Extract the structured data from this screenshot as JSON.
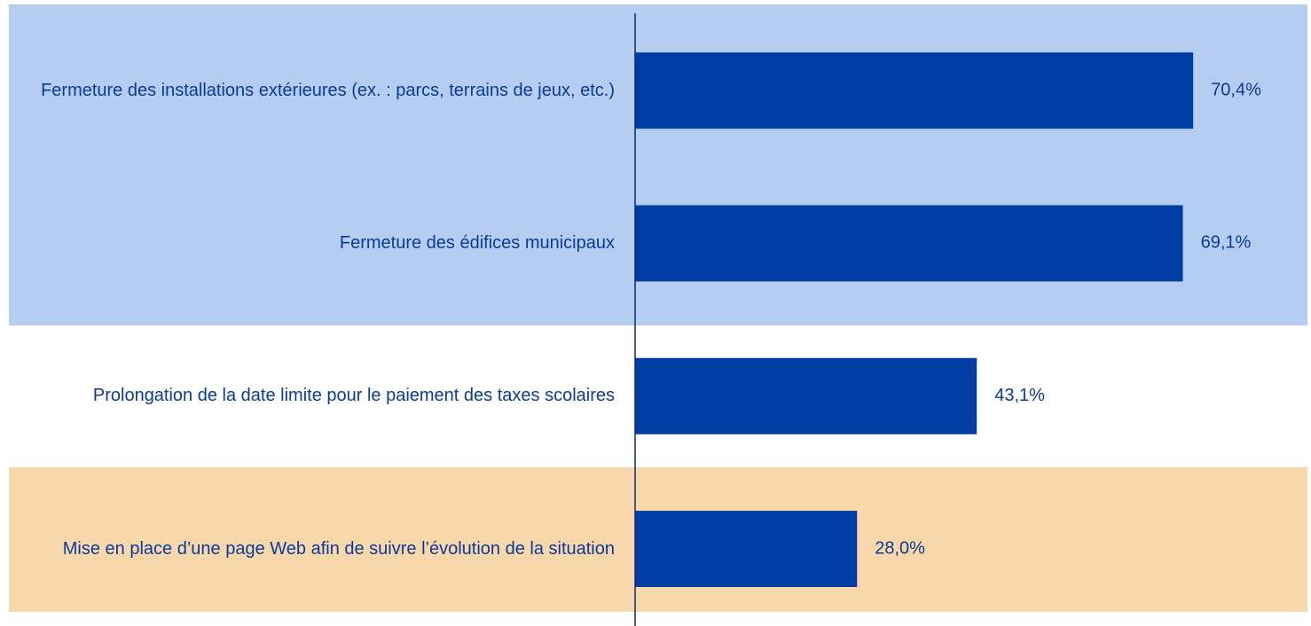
{
  "chart_data": {
    "type": "hbar",
    "categories": [
      "Fermeture des installations extérieures (ex. : parcs, terrains de jeux, etc.)",
      "Fermeture des édifices municipaux",
      "Prolongation de la date limite pour le paiement des taxes scolaires",
      "Mise en place d’une page Web afin de suivre l’évolution de la situation"
    ],
    "values": [
      70.4,
      69.1,
      43.1,
      28.0
    ],
    "value_labels": [
      "70,4%",
      "69,1%",
      "43,1%",
      "28,0%"
    ],
    "color": "#003da5",
    "xlim": [
      0,
      80
    ]
  }
}
